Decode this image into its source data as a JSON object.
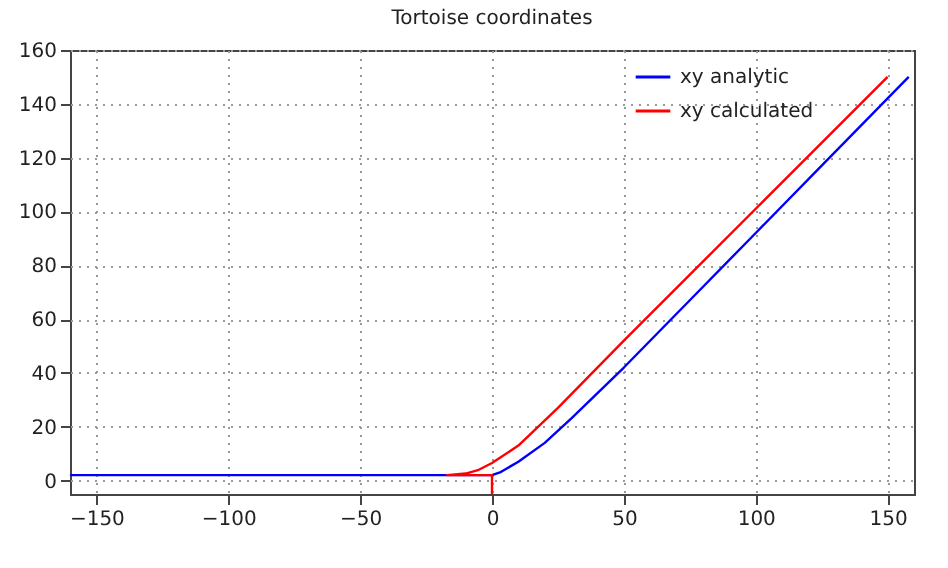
{
  "chart_data": {
    "type": "line",
    "title": "Tortoise coordinates",
    "series": [
      {
        "name": "xy analytic",
        "color": "#0000ff",
        "x": [
          -160,
          0,
          3,
          10,
          20,
          30,
          50,
          75,
          100,
          125,
          150,
          158
        ],
        "values": [
          2,
          2,
          3,
          7,
          14,
          23,
          42,
          67,
          92,
          117,
          142,
          150
        ]
      },
      {
        "name": "xy calculated",
        "color": "#ff0000",
        "x": [
          0,
          0,
          -17,
          -10,
          -5,
          0,
          10,
          25,
          50,
          100,
          150
        ],
        "values": [
          -5,
          2,
          2,
          2.6,
          4,
          6.5,
          13,
          27,
          52,
          101,
          150
        ]
      }
    ],
    "xlim": [
      -160,
      160
    ],
    "xticks": [
      -150,
      -100,
      -50,
      0,
      50,
      100,
      150
    ],
    "ylim": [
      -5,
      160
    ],
    "yticks": [
      0,
      20,
      40,
      60,
      80,
      100,
      120,
      140,
      160
    ],
    "grid": true,
    "legend": "top right",
    "line_style": "solid",
    "marker": "none"
  }
}
